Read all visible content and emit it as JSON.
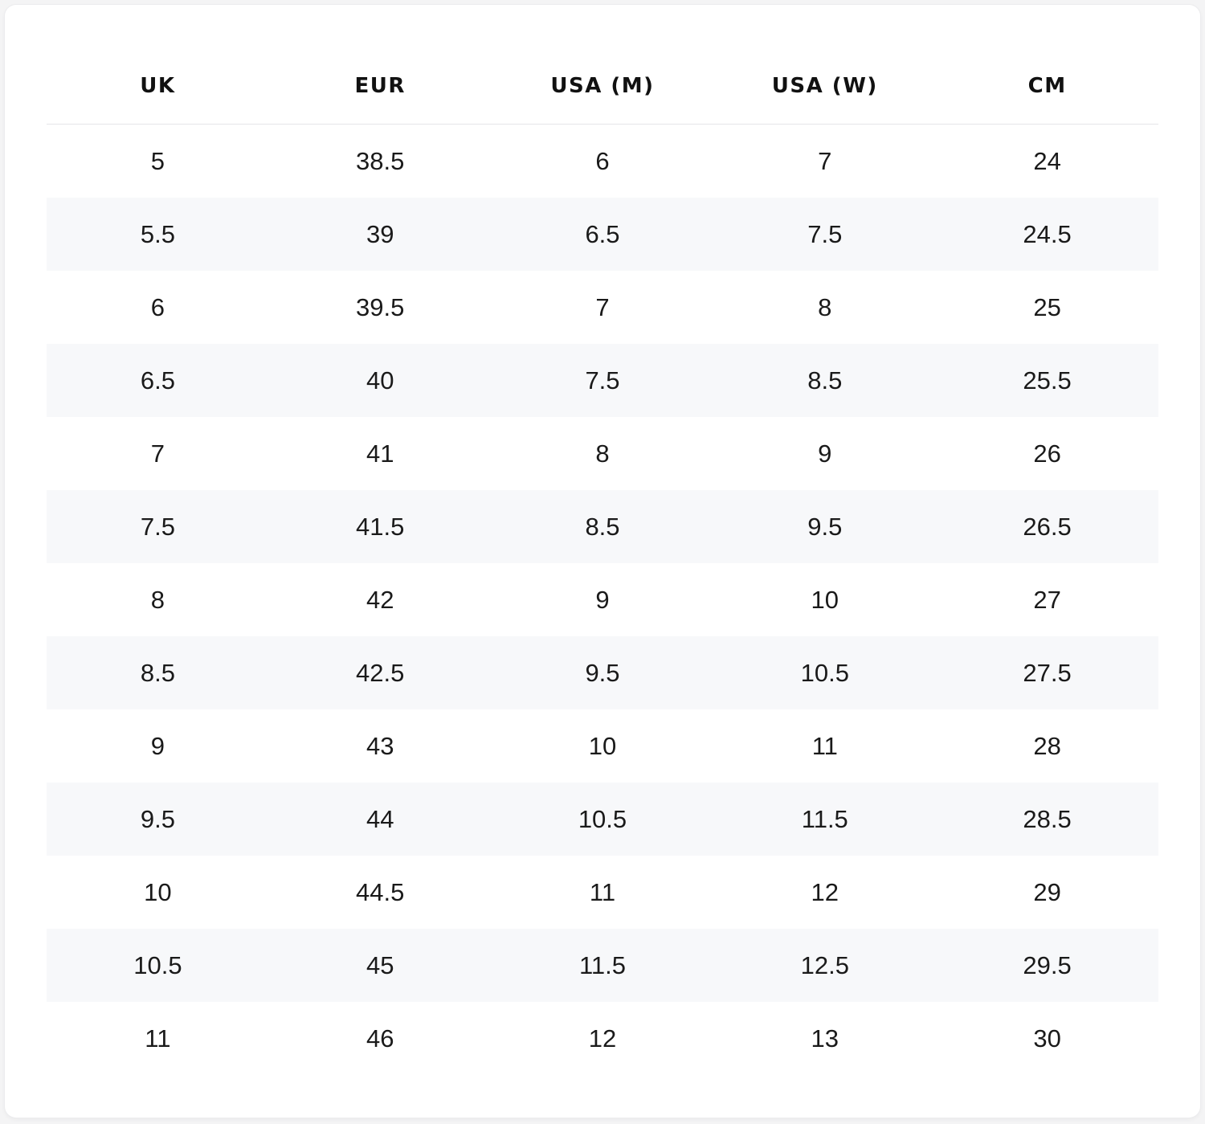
{
  "colors": {
    "card_background": "#ffffff",
    "stripe_background": "#f7f8fa",
    "text": "#1a1a1a",
    "divider": "#e6e6e9"
  },
  "table": {
    "headers": [
      "UK",
      "EUR",
      "USA (M)",
      "USA (W)",
      "CM"
    ],
    "rows": [
      [
        "5",
        "38.5",
        "6",
        "7",
        "24"
      ],
      [
        "5.5",
        "39",
        "6.5",
        "7.5",
        "24.5"
      ],
      [
        "6",
        "39.5",
        "7",
        "8",
        "25"
      ],
      [
        "6.5",
        "40",
        "7.5",
        "8.5",
        "25.5"
      ],
      [
        "7",
        "41",
        "8",
        "9",
        "26"
      ],
      [
        "7.5",
        "41.5",
        "8.5",
        "9.5",
        "26.5"
      ],
      [
        "8",
        "42",
        "9",
        "10",
        "27"
      ],
      [
        "8.5",
        "42.5",
        "9.5",
        "10.5",
        "27.5"
      ],
      [
        "9",
        "43",
        "10",
        "11",
        "28"
      ],
      [
        "9.5",
        "44",
        "10.5",
        "11.5",
        "28.5"
      ],
      [
        "10",
        "44.5",
        "11",
        "12",
        "29"
      ],
      [
        "10.5",
        "45",
        "11.5",
        "12.5",
        "29.5"
      ],
      [
        "11",
        "46",
        "12",
        "13",
        "30"
      ]
    ]
  }
}
